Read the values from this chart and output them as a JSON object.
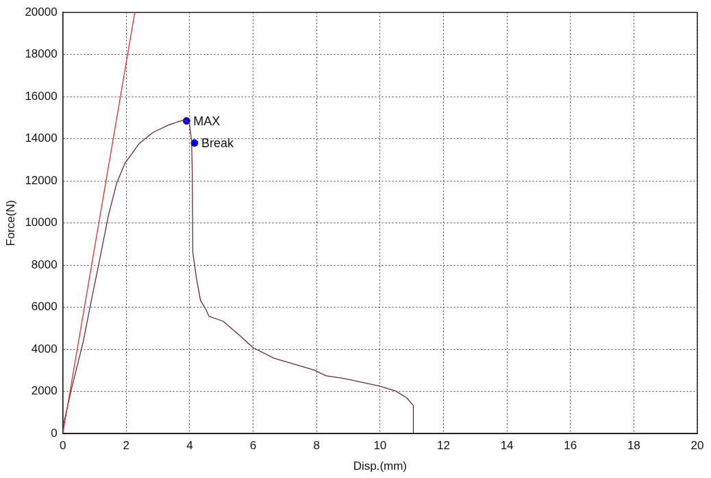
{
  "chart_data": {
    "type": "line",
    "xlabel": "Disp.(mm)",
    "ylabel": "Force(N)",
    "xlim": [
      0,
      20
    ],
    "xticks": [
      0,
      2,
      4,
      6,
      8,
      10,
      12,
      14,
      16,
      18,
      20
    ],
    "ylim": [
      0,
      20000
    ],
    "yticks": [
      0,
      2000,
      4000,
      6000,
      8000,
      10000,
      12000,
      14000,
      16000,
      18000,
      20000
    ],
    "grid": true,
    "legend": false,
    "line_style": "solid",
    "series": [
      {
        "color": "#e03030",
        "x": [
          0,
          2.27
        ],
        "values": [
          0,
          20000
        ]
      },
      {
        "color": "#6b2a3a",
        "x": [
          0,
          0.02,
          0.29,
          0.64,
          0.9,
          1.17,
          1.43,
          1.7,
          1.96,
          2.4,
          2.84,
          3.29,
          3.81,
          3.9,
          3.99,
          4.06,
          4.08,
          4.1,
          4.21,
          4.34,
          4.52,
          4.61,
          5.05,
          5.56,
          6.0,
          6.66,
          7.41,
          7.92,
          8.29,
          8.86,
          9.97,
          10.5,
          10.85,
          11.05,
          11.05
        ],
        "values": [
          0,
          430,
          2220,
          4340,
          6330,
          8320,
          10310,
          11900,
          12840,
          13760,
          14300,
          14630,
          14900,
          14850,
          14760,
          13900,
          12440,
          8590,
          7400,
          6330,
          5870,
          5570,
          5340,
          4680,
          4080,
          3580,
          3250,
          3020,
          2750,
          2620,
          2260,
          2020,
          1690,
          1330,
          0
        ]
      },
      {
        "type": "scatter",
        "color": "#0000ff",
        "marker": "circle",
        "x": [
          3.9,
          4.15
        ],
        "values": [
          14850,
          13800
        ]
      }
    ],
    "annotations": [
      {
        "text": "MAX",
        "x": 3.9,
        "y": 14850
      },
      {
        "text": "Break",
        "x": 4.15,
        "y": 13800
      }
    ]
  }
}
